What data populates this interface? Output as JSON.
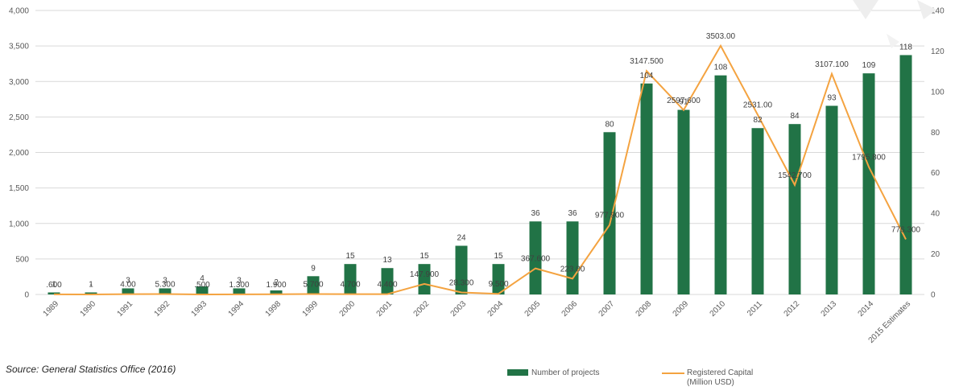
{
  "source_note": "Source: General Statistics Office (2016)",
  "colors": {
    "bar": "#217346",
    "line": "#f4a340",
    "grid": "#d9d9d9"
  },
  "legend": {
    "bar_label": "Number of projects",
    "line_label_1": "Registered Capital",
    "line_label_2": "(Million USD)"
  },
  "chart_data": {
    "type": "bar",
    "categories": [
      "1989",
      "1990",
      "1991",
      "1992",
      "1993",
      "1994",
      "1998",
      "1999",
      "2000",
      "2001",
      "2002",
      "2003",
      "2004",
      "2005",
      "2006",
      "2007",
      "2008",
      "2009",
      "2010",
      "2011",
      "2012",
      "2013",
      "2014",
      "2015 Estimates"
    ],
    "series": [
      {
        "name": "Number of projects",
        "type": "bar",
        "axis": "right",
        "values": [
          1,
          1,
          3,
          3,
          4,
          3,
          2,
          9,
          15,
          13,
          15,
          24,
          15,
          36,
          36,
          80,
          104,
          91,
          108,
          82,
          84,
          93,
          109,
          118
        ],
        "labels": [
          "1",
          "1",
          "3",
          "3",
          "4",
          "3",
          "2",
          "9",
          "15",
          "13",
          "15",
          "24",
          "15",
          "36",
          "36",
          "80",
          "104",
          "91",
          "108",
          "82",
          "84",
          "93",
          "109",
          "118"
        ]
      },
      {
        "name": "Registered Capital (Million USD)",
        "type": "line",
        "axis": "left",
        "values": [
          0.6,
          0,
          4,
          5.3,
          0.5,
          1.3,
          1.9,
          5.7,
          4.7,
          4.4,
          147.9,
          28.3,
          9.5,
          367.6,
          223,
          977.9,
          3147.5,
          2597.6,
          3503,
          2531,
          1542.7,
          3107.1,
          1795.8,
          776.3
        ],
        "labels": [
          ".600",
          "-",
          "4.00",
          "5.300",
          ".500",
          "1.300",
          "1.900",
          "5.700",
          "4.700",
          "4.400",
          "147.900",
          "28.300",
          "9.500",
          "367.600",
          "223.00",
          "977.900",
          "3147.500",
          "2597.600",
          "3503.00",
          "2531.00",
          "1542.700",
          "3107.100",
          "1795.800",
          "776.300"
        ]
      }
    ],
    "y_left": {
      "lim": [
        0,
        4000
      ],
      "ticks": [
        "0",
        "500",
        "1,000",
        "1,500",
        "2,000",
        "2,500",
        "3,000",
        "3,500",
        "4,000"
      ]
    },
    "y_right": {
      "lim": [
        0,
        140
      ],
      "ticks": [
        "0",
        "20",
        "40",
        "60",
        "80",
        "100",
        "120",
        "140"
      ]
    },
    "grid": true,
    "legend_position": "bottom-right"
  }
}
